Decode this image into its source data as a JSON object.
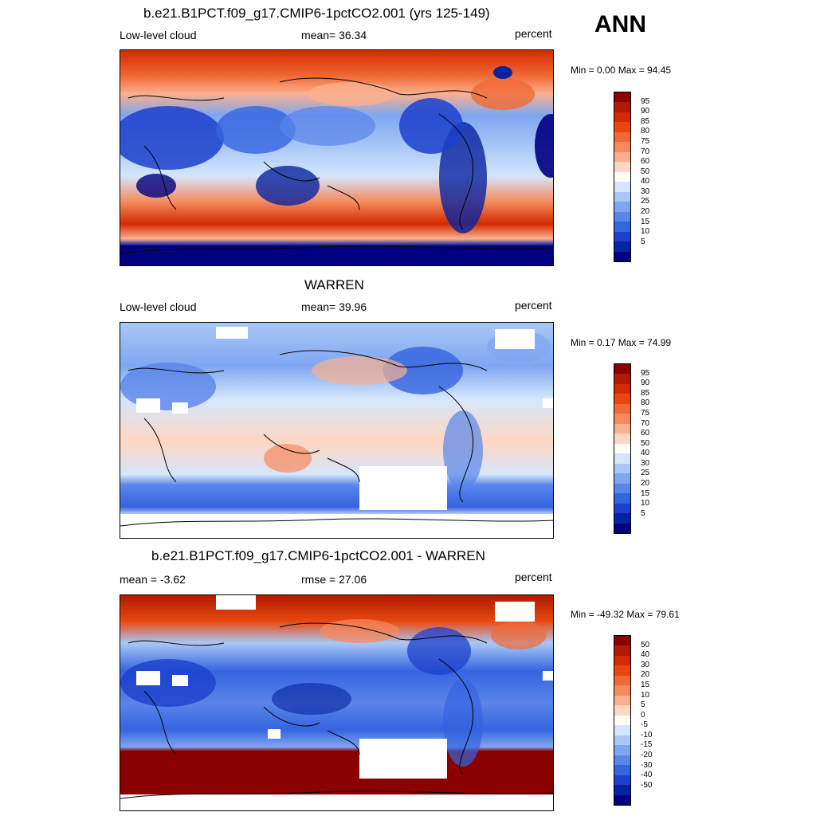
{
  "season": "ANN",
  "panels": [
    {
      "title": "b.e21.B1PCT.f09_g17.CMIP6-1pctCO2.001 (yrs 125-149)",
      "left": "Low-level cloud",
      "center": "mean=  36.34",
      "right": "percent",
      "minmax": "Min =   0.00 Max =  94.45",
      "type": "model"
    },
    {
      "title": "WARREN",
      "left": "Low-level cloud",
      "center": "mean=  39.96",
      "right": "percent",
      "minmax": "Min =   0.17 Max =  74.99",
      "type": "obs"
    },
    {
      "title": "b.e21.B1PCT.f09_g17.CMIP6-1pctCO2.001 - WARREN",
      "left": "mean =  -3.62",
      "center": "rmse =  27.06",
      "right": "percent",
      "minmax": "Min = -49.32 Max =  79.61",
      "type": "diff"
    }
  ],
  "colorbar_abs": {
    "labels": [
      "95",
      "90",
      "85",
      "80",
      "75",
      "70",
      "60",
      "50",
      "40",
      "30",
      "25",
      "20",
      "15",
      "10",
      "5"
    ],
    "colors": [
      "#8b0000",
      "#b01a00",
      "#d42a00",
      "#e84810",
      "#f06a36",
      "#f68a5e",
      "#fab08e",
      "#fdd7c2",
      "#fffdf5",
      "#d4e6fb",
      "#a9c8f7",
      "#7fa6f1",
      "#5a85ea",
      "#3564df",
      "#1c40cc",
      "#07239f",
      "#000080"
    ]
  },
  "colorbar_diff": {
    "labels": [
      "50",
      "40",
      "30",
      "20",
      "15",
      "10",
      "5",
      "0",
      "-5",
      "-10",
      "-15",
      "-20",
      "-30",
      "-40",
      "-50"
    ],
    "colors": [
      "#8b0000",
      "#b01a00",
      "#d42a00",
      "#e84810",
      "#f06a36",
      "#f68a5e",
      "#fab08e",
      "#fdd7c2",
      "#fffdf5",
      "#d4e6fb",
      "#a9c8f7",
      "#7fa6f1",
      "#5a85ea",
      "#3564df",
      "#1c40cc",
      "#07239f",
      "#000080"
    ]
  }
}
